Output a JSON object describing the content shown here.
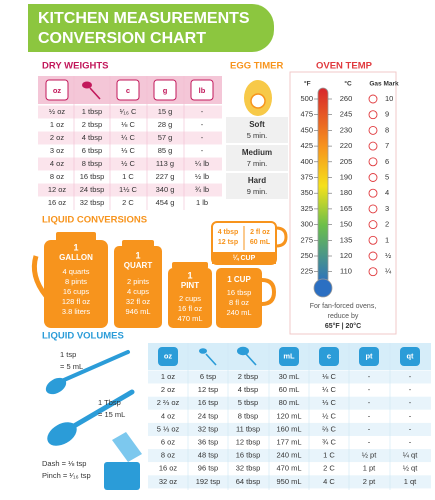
{
  "header": {
    "title_lines": [
      "KITCHEN MEASUREMENTS",
      "CONVERSION CHART"
    ]
  },
  "dry_weights": {
    "title": "DRY WEIGHTS",
    "icon_labels": [
      "oz",
      "c",
      "g",
      "lb"
    ],
    "rows": [
      [
        "½ oz",
        "1 tbsp",
        "¹⁄₁₆ C",
        "15 g",
        "-"
      ],
      [
        "1 oz",
        "2 tbsp",
        "⅛ C",
        "28 g",
        "-"
      ],
      [
        "2 oz",
        "4 tbsp",
        "¼ C",
        "57 g",
        "-"
      ],
      [
        "3 oz",
        "6 tbsp",
        "⅓ C",
        "85 g",
        "-"
      ],
      [
        "4 oz",
        "8 tbsp",
        "½ C",
        "113 g",
        "¼ lb"
      ],
      [
        "8 oz",
        "16 tbsp",
        "1 C",
        "227 g",
        "½ lb"
      ],
      [
        "12 oz",
        "24 tbsp",
        "1½ C",
        "340 g",
        "¾ lb"
      ],
      [
        "16 oz",
        "32 tbsp",
        "2 C",
        "454 g",
        "1 lb"
      ]
    ]
  },
  "egg_timer": {
    "title": "EGG TIMER",
    "rows": [
      [
        "Soft",
        "5 min."
      ],
      [
        "Medium",
        "7 min."
      ],
      [
        "Hard",
        "9 min."
      ]
    ]
  },
  "oven_temp": {
    "title": "OVEN TEMP",
    "columns": [
      "°F",
      "°C",
      "Gas Mark"
    ],
    "rows": [
      [
        "500",
        "260",
        "10"
      ],
      [
        "475",
        "245",
        "9"
      ],
      [
        "450",
        "230",
        "8"
      ],
      [
        "425",
        "220",
        "7"
      ],
      [
        "400",
        "205",
        "6"
      ],
      [
        "375",
        "190",
        "5"
      ],
      [
        "350",
        "180",
        "4"
      ],
      [
        "325",
        "165",
        "3"
      ],
      [
        "300",
        "150",
        "2"
      ],
      [
        "275",
        "135",
        "1"
      ],
      [
        "250",
        "120",
        "½"
      ],
      [
        "225",
        "110",
        "¼"
      ]
    ],
    "note_lines": [
      "For fan-forced ovens,",
      "reduce by",
      "65°F | 20°C"
    ]
  },
  "liquid_conversions": {
    "title": "LIQUID CONVERSIONS",
    "gallon": {
      "amount": "1",
      "unit": "GALLON",
      "lines": [
        "4 quarts",
        "8 pints",
        "16 cups",
        "128 fl oz",
        "3.8 liters"
      ]
    },
    "quart": {
      "amount": "1",
      "unit": "QUART",
      "lines": [
        "2 pints",
        "4 cups",
        "32 fl oz",
        "946 mL"
      ]
    },
    "pint": {
      "amount": "1",
      "unit": "PINT",
      "lines": [
        "2 cups",
        "16 fl oz",
        "470 mL"
      ]
    },
    "cup": {
      "unit": "1 CUP",
      "lines": [
        "16 tbsp",
        "8 fl oz",
        "240 mL"
      ]
    },
    "quarter_cup": {
      "unit": "¼ CUP",
      "lines": [
        "4 tbsp",
        "12 tsp",
        "2 fl oz",
        "60 mL"
      ]
    }
  },
  "liquid_volumes": {
    "title": "LIQUID VOLUMES",
    "notes": [
      "1 tsp",
      "= 5 mL",
      "1 Tbsp",
      "= 15 mL",
      "Dash = ⅛ tsp",
      "Pinch = ¹⁄₁₆ tsp"
    ],
    "icon_labels": [
      "oz",
      "mL",
      "c",
      "pt",
      "qt"
    ],
    "rows": [
      [
        "1 oz",
        "6 tsp",
        "2 tbsp",
        "30 mL",
        "⅛ C",
        "-",
        "-"
      ],
      [
        "2 oz",
        "12 tsp",
        "4 tbsp",
        "60 mL",
        "¼ C",
        "-",
        "-"
      ],
      [
        "2 ⅔ oz",
        "16 tsp",
        "5 tbsp",
        "80 mL",
        "⅓ C",
        "-",
        "-"
      ],
      [
        "4 oz",
        "24 tsp",
        "8 tbsp",
        "120 mL",
        "½ C",
        "-",
        "-"
      ],
      [
        "5 ⅓ oz",
        "32 tsp",
        "11 tbsp",
        "160 mL",
        "⅔ C",
        "-",
        "-"
      ],
      [
        "6 oz",
        "36 tsp",
        "12 tbsp",
        "177 mL",
        "¾ C",
        "-",
        "-"
      ],
      [
        "8 oz",
        "48 tsp",
        "16 tbsp",
        "240 mL",
        "1 C",
        "½ pt",
        "¼ qt"
      ],
      [
        "16 oz",
        "96 tsp",
        "32 tbsp",
        "470 mL",
        "2 C",
        "1 pt",
        "½ qt"
      ],
      [
        "32 oz",
        "192 tsp",
        "64 tbsp",
        "950 mL",
        "4 C",
        "2 pt",
        "1 qt"
      ]
    ]
  }
}
